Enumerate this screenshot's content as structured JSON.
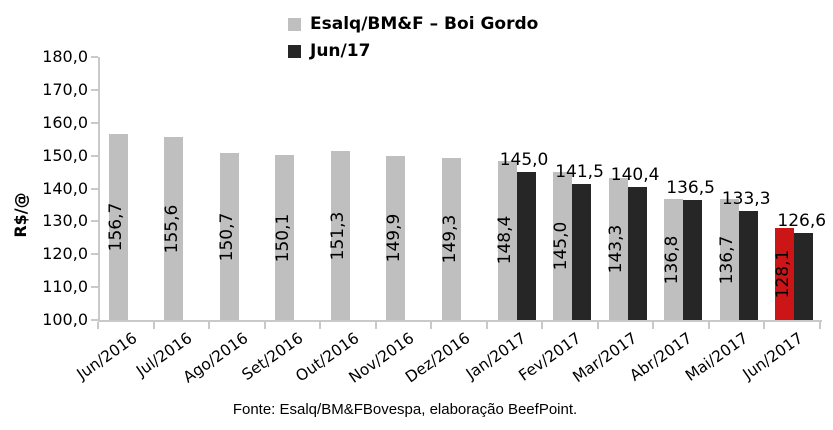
{
  "legend": {
    "items": [
      {
        "label": "Esalq/BM&F – Boi Gordo",
        "color": "#bfbfbf"
      },
      {
        "label": "Jun/17",
        "color": "#262626"
      }
    ]
  },
  "footer": "Fonte: Esalq/BM&FBovespa, elaboração BeefPoint.",
  "chart_data": {
    "type": "bar",
    "title": "",
    "xlabel": "",
    "ylabel": "R$/@",
    "ylim": [
      100,
      180
    ],
    "grid": false,
    "legend_position": "top",
    "ytick_values": [
      180,
      170,
      160,
      150,
      140,
      130,
      120,
      110,
      100
    ],
    "ytick_labels": [
      "180,0",
      "170,0",
      "160,0",
      "150,0",
      "140,0",
      "130,0",
      "120,0",
      "110,0",
      "100,0"
    ],
    "categories": [
      "Jun/2016",
      "Jul/2016",
      "Ago/2016",
      "Set/2016",
      "Out/2016",
      "Nov/2016",
      "Dez/2016",
      "Jan/2017",
      "Fev/2017",
      "Mar/2017",
      "Abr/2017",
      "Mai/2017",
      "Jun/2017"
    ],
    "series": [
      {
        "name": "Esalq/BM&F – Boi Gordo",
        "color": "#bfbfbf",
        "label_position": "inside-vertical",
        "values": [
          156.7,
          155.6,
          150.7,
          150.1,
          151.3,
          149.9,
          149.3,
          148.4,
          145.0,
          143.3,
          136.8,
          136.7,
          128.1
        ],
        "labels": [
          "156,7",
          "155,6",
          "150,7",
          "150,1",
          "151,3",
          "149,9",
          "149,3",
          "148,4",
          "145,0",
          "143,3",
          "136,8",
          "136,7",
          "128,1"
        ]
      },
      {
        "name": "Jun/17",
        "color": "#262626",
        "label_position": "above",
        "values": [
          null,
          null,
          null,
          null,
          null,
          null,
          null,
          145.0,
          141.5,
          140.4,
          136.5,
          133.3,
          126.6
        ],
        "labels": [
          null,
          null,
          null,
          null,
          null,
          null,
          null,
          "145,0",
          "141,5",
          "140,4",
          "136,5",
          "133,3",
          "126,6"
        ]
      }
    ],
    "highlight": {
      "series": 0,
      "index": 12,
      "color": "#cb1517"
    }
  }
}
